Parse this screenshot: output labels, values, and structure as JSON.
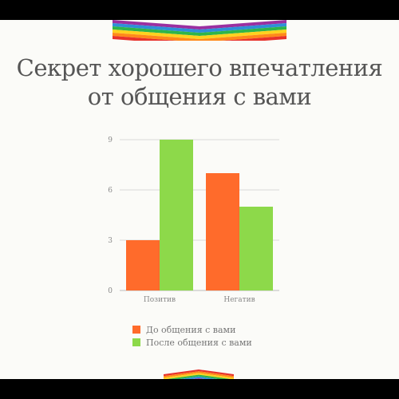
{
  "title_line1": "Секрет хорошего впечатления",
  "title_line2": "от общения с вами",
  "colors": {
    "before": "#ff6b2b",
    "after": "#8dd94a",
    "grid": "#d9d9d9",
    "ribbon": [
      "#9b2fa0",
      "#2f8fd8",
      "#2fb54a",
      "#ffd21f",
      "#ff8a1a",
      "#e8322b"
    ]
  },
  "chart_data": {
    "type": "bar",
    "title": "",
    "xlabel": "",
    "ylabel": "",
    "categories": [
      "Позитив",
      "Негатив"
    ],
    "series": [
      {
        "name": "До общения с вами",
        "values": [
          3,
          7
        ]
      },
      {
        "name": "После общения с вами",
        "values": [
          9,
          5
        ]
      }
    ],
    "yticks": [
      0,
      3,
      6,
      9
    ],
    "ylim": [
      0,
      9
    ],
    "grid": true,
    "legend_position": "bottom"
  }
}
